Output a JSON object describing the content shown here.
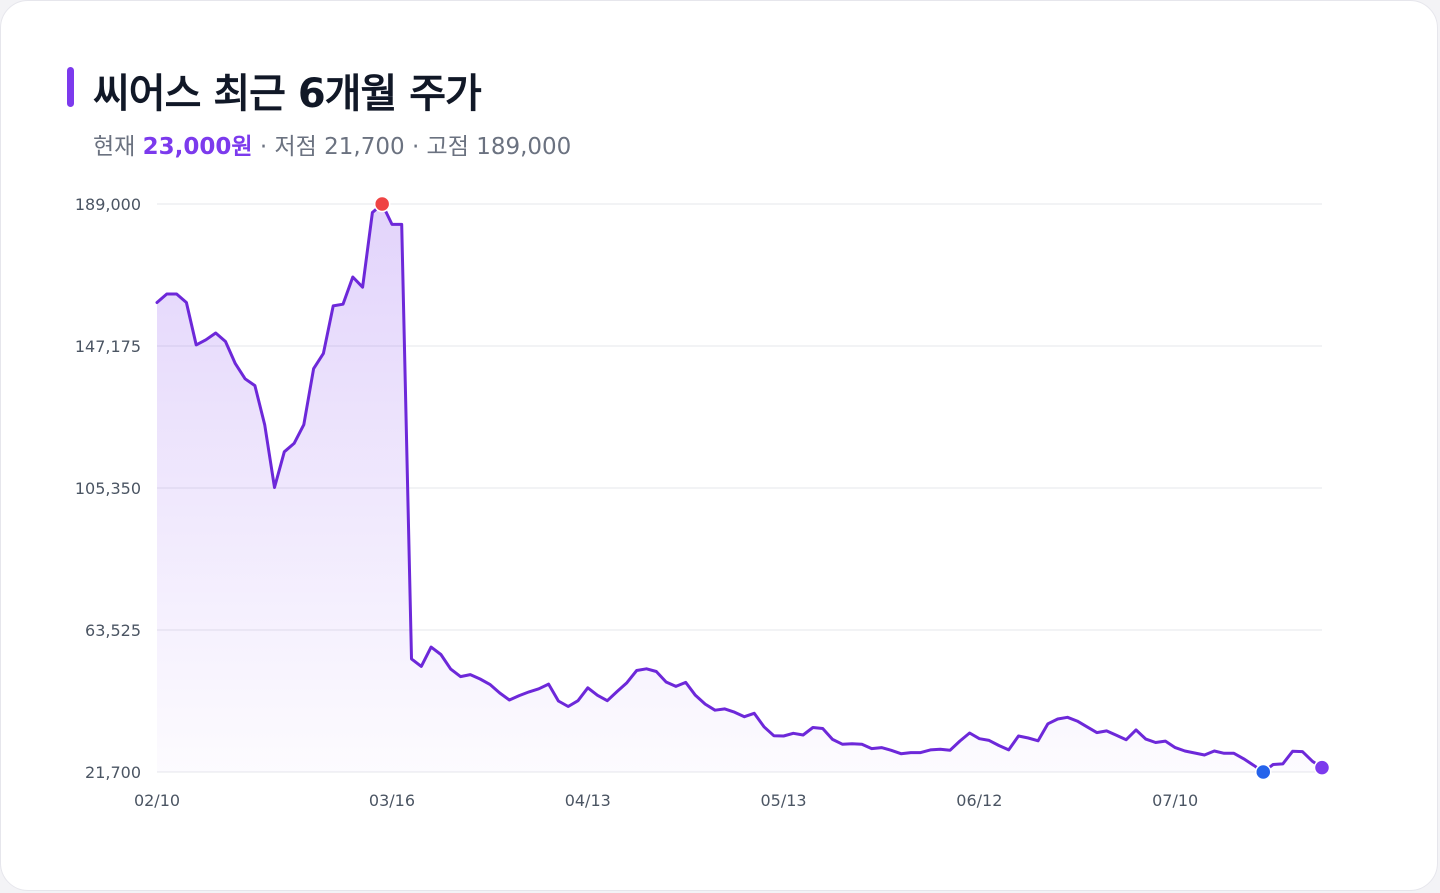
{
  "title": "씨어스 최근 6개월 주가",
  "summary": {
    "current_label": "현재",
    "current_value": "23,000원",
    "low_label": "· 저점",
    "low_value": "21,700",
    "high_label": "· 고점",
    "high_value": "189,000"
  },
  "colors": {
    "accent": "#7c3aed",
    "line": "#6d28d9",
    "high_marker": "#ef4444",
    "low_marker": "#2563eb",
    "grid": "#e5e7eb"
  },
  "chart_data": {
    "type": "area",
    "title": "씨어스 최근 6개월 주가",
    "xlabel": "",
    "ylabel": "",
    "grid": true,
    "ylim": [
      21700,
      189000
    ],
    "y_ticks": [
      "189,000",
      "147,175",
      "105,350",
      "63,525",
      "21,700"
    ],
    "y_tick_values": [
      189000,
      147175,
      105350,
      63525,
      21700
    ],
    "x_ticks": [
      "02/10",
      "03/16",
      "04/13",
      "05/13",
      "06/12",
      "07/10"
    ],
    "x_tick_index": [
      0,
      24,
      44,
      64,
      84,
      104
    ],
    "highlights": {
      "high_index": 23,
      "low_index": 113,
      "last_index": 119
    },
    "series": [
      {
        "values": [
          160000,
          162500,
          162500,
          160000,
          147500,
          149000,
          151000,
          148500,
          142000,
          137500,
          135500,
          124000,
          105500,
          116000,
          118500,
          124000,
          140500,
          145000,
          159000,
          159500,
          167500,
          164500,
          186500,
          189000,
          183000,
          183000,
          55000,
          52800,
          58500,
          56300,
          52000,
          49800,
          50400,
          49100,
          47500,
          45000,
          42900,
          44200,
          45300,
          46200,
          47600,
          42600,
          41000,
          42700,
          46500,
          44300,
          42700,
          45400,
          48000,
          51600,
          52100,
          51300,
          48200,
          46900,
          48100,
          44300,
          41700,
          39900,
          40300,
          39300,
          38000,
          39000,
          35000,
          32400,
          32300,
          33100,
          32600,
          34800,
          34500,
          31300,
          29900,
          30000,
          29900,
          28600,
          28900,
          28100,
          27100,
          27400,
          27400,
          28200,
          28400,
          28100,
          30800,
          33200,
          31500,
          31000,
          29500,
          28200,
          32300,
          31700,
          30900,
          35900,
          37300,
          37800,
          36700,
          35000,
          33300,
          33800,
          32500,
          31200,
          34100,
          31400,
          30400,
          30800,
          28900,
          27900,
          27300,
          26700,
          27900,
          27200,
          27200,
          25600,
          23700,
          21700,
          23900,
          24100,
          27800,
          27700,
          24900,
          23000
        ]
      }
    ]
  }
}
